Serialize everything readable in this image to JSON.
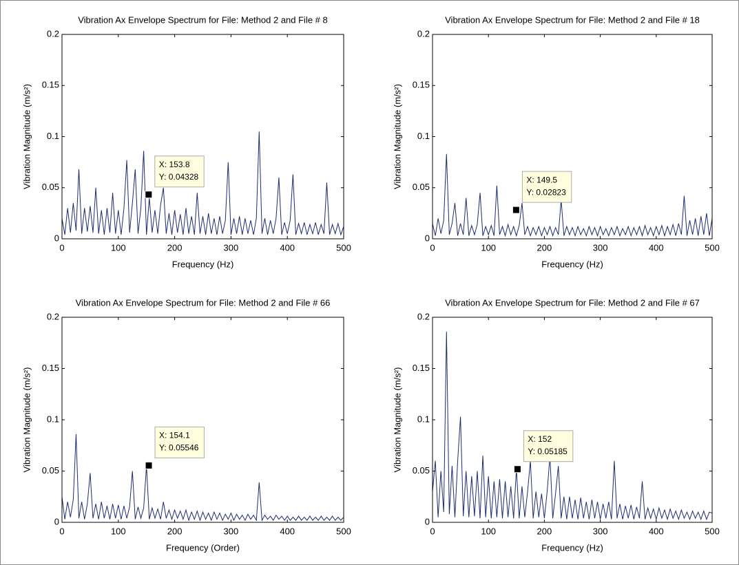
{
  "chart_data": [
    {
      "type": "line",
      "title": "Vibration Ax Envelope Spectrum for File: Method 2 and File # 8",
      "xlabel": "Frequency (Hz)",
      "ylabel": "Vibration Magnitude (m/s²)",
      "color": "#1c2a72",
      "x": [
        0,
        5,
        10,
        15,
        20,
        25,
        30,
        35,
        40,
        45,
        50,
        55,
        60,
        65,
        70,
        75,
        80,
        85,
        90,
        95,
        100,
        105,
        110,
        115,
        120,
        125,
        130,
        135,
        140,
        145,
        150,
        155,
        160,
        165,
        170,
        175,
        180,
        185,
        190,
        195,
        200,
        205,
        210,
        215,
        220,
        225,
        230,
        235,
        240,
        245,
        250,
        255,
        260,
        265,
        270,
        275,
        280,
        285,
        290,
        295,
        300,
        305,
        310,
        315,
        320,
        325,
        330,
        335,
        340,
        345,
        350,
        355,
        360,
        365,
        370,
        375,
        380,
        385,
        390,
        395,
        400,
        405,
        410,
        415,
        420,
        425,
        430,
        435,
        440,
        445,
        450,
        455,
        460,
        465,
        470,
        475,
        480,
        485,
        490,
        495,
        500
      ],
      "values": [
        0.02,
        0.004,
        0.03,
        0.006,
        0.035,
        0.008,
        0.068,
        0.005,
        0.03,
        0.007,
        0.032,
        0.006,
        0.05,
        0.005,
        0.028,
        0.004,
        0.03,
        0.006,
        0.045,
        0.005,
        0.028,
        0.004,
        0.03,
        0.077,
        0.006,
        0.035,
        0.068,
        0.005,
        0.03,
        0.086,
        0.004,
        0.04,
        0.006,
        0.028,
        0.005,
        0.033,
        0.05,
        0.005,
        0.025,
        0.004,
        0.028,
        0.006,
        0.024,
        0.004,
        0.03,
        0.005,
        0.022,
        0.004,
        0.045,
        0.005,
        0.022,
        0.004,
        0.025,
        0.005,
        0.02,
        0.004,
        0.022,
        0.005,
        0.018,
        0.075,
        0.004,
        0.02,
        0.005,
        0.022,
        0.004,
        0.02,
        0.005,
        0.018,
        0.004,
        0.02,
        0.105,
        0.005,
        0.02,
        0.004,
        0.018,
        0.005,
        0.02,
        0.06,
        0.004,
        0.016,
        0.005,
        0.018,
        0.063,
        0.004,
        0.015,
        0.005,
        0.016,
        0.004,
        0.014,
        0.005,
        0.016,
        0.004,
        0.014,
        0.005,
        0.055,
        0.004,
        0.014,
        0.005,
        0.015,
        0.004,
        0.012
      ],
      "xlim": [
        0,
        500
      ],
      "ylim": [
        0,
        0.2
      ],
      "xticks": [
        0,
        100,
        200,
        300,
        400,
        500
      ],
      "yticks": [
        0,
        0.05,
        0.1,
        0.15,
        0.2
      ],
      "datatip": {
        "x": 153.8,
        "y": 0.04328,
        "labels": [
          "X: 153.8",
          "Y: 0.04328"
        ]
      }
    },
    {
      "type": "line",
      "title": "Vibration Ax Envelope Spectrum for File: Method 2 and File # 18",
      "xlabel": "Frequency (Hz)",
      "ylabel": "Vibration Magnitude (m/s²)",
      "color": "#1c2a72",
      "x": [
        0,
        5,
        10,
        15,
        20,
        25,
        30,
        35,
        40,
        45,
        50,
        55,
        60,
        65,
        70,
        75,
        80,
        85,
        90,
        95,
        100,
        105,
        110,
        115,
        120,
        125,
        130,
        135,
        140,
        145,
        150,
        155,
        160,
        165,
        170,
        175,
        180,
        185,
        190,
        195,
        200,
        205,
        210,
        215,
        220,
        225,
        230,
        235,
        240,
        245,
        250,
        255,
        260,
        265,
        270,
        275,
        280,
        285,
        290,
        295,
        300,
        305,
        310,
        315,
        320,
        325,
        330,
        335,
        340,
        345,
        350,
        355,
        360,
        365,
        370,
        375,
        380,
        385,
        390,
        395,
        400,
        405,
        410,
        415,
        420,
        425,
        430,
        435,
        440,
        445,
        450,
        455,
        460,
        465,
        470,
        475,
        480,
        485,
        490,
        495,
        500
      ],
      "values": [
        0.015,
        0.003,
        0.02,
        0.005,
        0.018,
        0.083,
        0.004,
        0.015,
        0.035,
        0.003,
        0.015,
        0.004,
        0.04,
        0.003,
        0.013,
        0.004,
        0.014,
        0.045,
        0.003,
        0.012,
        0.004,
        0.013,
        0.003,
        0.052,
        0.004,
        0.012,
        0.003,
        0.014,
        0.004,
        0.012,
        0.003,
        0.013,
        0.035,
        0.004,
        0.012,
        0.003,
        0.011,
        0.004,
        0.012,
        0.003,
        0.011,
        0.004,
        0.012,
        0.003,
        0.011,
        0.004,
        0.038,
        0.003,
        0.012,
        0.004,
        0.011,
        0.003,
        0.012,
        0.004,
        0.01,
        0.003,
        0.012,
        0.004,
        0.011,
        0.003,
        0.012,
        0.004,
        0.01,
        0.003,
        0.011,
        0.004,
        0.012,
        0.003,
        0.01,
        0.004,
        0.012,
        0.003,
        0.011,
        0.004,
        0.012,
        0.003,
        0.013,
        0.004,
        0.011,
        0.003,
        0.012,
        0.004,
        0.013,
        0.003,
        0.012,
        0.004,
        0.014,
        0.003,
        0.015,
        0.004,
        0.042,
        0.003,
        0.018,
        0.004,
        0.02,
        0.003,
        0.022,
        0.004,
        0.025,
        0.003,
        0.02
      ],
      "xlim": [
        0,
        500
      ],
      "ylim": [
        0,
        0.2
      ],
      "xticks": [
        0,
        100,
        200,
        300,
        400,
        500
      ],
      "yticks": [
        0,
        0.05,
        0.1,
        0.15,
        0.2
      ],
      "datatip": {
        "x": 149.5,
        "y": 0.02823,
        "labels": [
          "X: 149.5",
          "Y: 0.02823"
        ]
      }
    },
    {
      "type": "line",
      "title": "Vibration Ax Envelope Spectrum for File: Method 2 and File # 66",
      "xlabel": "Frequency (Order)",
      "ylabel": "Vibration Magnitude (m/s²)",
      "color": "#1c2a72",
      "x": [
        0,
        5,
        10,
        15,
        20,
        25,
        30,
        35,
        40,
        45,
        50,
        55,
        60,
        65,
        70,
        75,
        80,
        85,
        90,
        95,
        100,
        105,
        110,
        115,
        120,
        125,
        130,
        135,
        140,
        145,
        150,
        155,
        160,
        165,
        170,
        175,
        180,
        185,
        190,
        195,
        200,
        205,
        210,
        215,
        220,
        225,
        230,
        235,
        240,
        245,
        250,
        255,
        260,
        265,
        270,
        275,
        280,
        285,
        290,
        295,
        300,
        305,
        310,
        315,
        320,
        325,
        330,
        335,
        340,
        345,
        350,
        355,
        360,
        365,
        370,
        375,
        380,
        385,
        390,
        395,
        400,
        405,
        410,
        415,
        420,
        425,
        430,
        435,
        440,
        445,
        450,
        455,
        460,
        465,
        470,
        475,
        480,
        485,
        490,
        495,
        500
      ],
      "values": [
        0.025,
        0.003,
        0.02,
        0.005,
        0.022,
        0.086,
        0.004,
        0.02,
        0.003,
        0.018,
        0.048,
        0.004,
        0.018,
        0.003,
        0.02,
        0.004,
        0.016,
        0.003,
        0.018,
        0.004,
        0.017,
        0.003,
        0.016,
        0.004,
        0.015,
        0.05,
        0.003,
        0.015,
        0.004,
        0.014,
        0.055,
        0.003,
        0.014,
        0.004,
        0.013,
        0.003,
        0.02,
        0.004,
        0.012,
        0.003,
        0.012,
        0.004,
        0.011,
        0.003,
        0.012,
        0.002,
        0.01,
        0.003,
        0.011,
        0.002,
        0.01,
        0.003,
        0.009,
        0.002,
        0.01,
        0.003,
        0.009,
        0.002,
        0.008,
        0.003,
        0.009,
        0.002,
        0.008,
        0.003,
        0.007,
        0.002,
        0.008,
        0.003,
        0.007,
        0.002,
        0.039,
        0.002,
        0.007,
        0.003,
        0.006,
        0.002,
        0.007,
        0.003,
        0.006,
        0.002,
        0.006,
        0.002,
        0.005,
        0.002,
        0.006,
        0.002,
        0.005,
        0.002,
        0.006,
        0.002,
        0.005,
        0.002,
        0.006,
        0.002,
        0.005,
        0.002,
        0.006,
        0.002,
        0.005,
        0.002,
        0.005
      ],
      "xlim": [
        0,
        500
      ],
      "ylim": [
        0,
        0.2
      ],
      "xticks": [
        0,
        100,
        200,
        300,
        400,
        500
      ],
      "yticks": [
        0,
        0.05,
        0.1,
        0.15,
        0.2
      ],
      "datatip": {
        "x": 154.1,
        "y": 0.05546,
        "labels": [
          "X: 154.1",
          "Y: 0.05546"
        ]
      }
    },
    {
      "type": "line",
      "title": "Vibration Ax Envelope Spectrum for File: Method 2 and File # 67",
      "xlabel": "Frequency (Hz)",
      "ylabel": "Vibration Magnitude (m/s²)",
      "color": "#1c2a72",
      "x": [
        0,
        5,
        10,
        15,
        20,
        25,
        30,
        35,
        40,
        45,
        50,
        55,
        60,
        65,
        70,
        75,
        80,
        85,
        90,
        95,
        100,
        105,
        110,
        115,
        120,
        125,
        130,
        135,
        140,
        145,
        150,
        155,
        160,
        165,
        170,
        175,
        180,
        185,
        190,
        195,
        200,
        205,
        210,
        215,
        220,
        225,
        230,
        235,
        240,
        245,
        250,
        255,
        260,
        265,
        270,
        275,
        280,
        285,
        290,
        295,
        300,
        305,
        310,
        315,
        320,
        325,
        330,
        335,
        340,
        345,
        350,
        355,
        360,
        365,
        370,
        375,
        380,
        385,
        390,
        395,
        400,
        405,
        410,
        415,
        420,
        425,
        430,
        435,
        440,
        445,
        450,
        455,
        460,
        465,
        470,
        475,
        480,
        485,
        490,
        495,
        500
      ],
      "values": [
        0.03,
        0.06,
        0.005,
        0.05,
        0.01,
        0.186,
        0.008,
        0.055,
        0.005,
        0.06,
        0.103,
        0.006,
        0.05,
        0.005,
        0.045,
        0.006,
        0.05,
        0.004,
        0.065,
        0.005,
        0.045,
        0.004,
        0.04,
        0.005,
        0.042,
        0.004,
        0.04,
        0.005,
        0.035,
        0.004,
        0.052,
        0.004,
        0.035,
        0.005,
        0.03,
        0.06,
        0.004,
        0.03,
        0.005,
        0.028,
        0.004,
        0.03,
        0.065,
        0.004,
        0.028,
        0.055,
        0.004,
        0.025,
        0.003,
        0.025,
        0.004,
        0.022,
        0.003,
        0.024,
        0.004,
        0.02,
        0.003,
        0.022,
        0.004,
        0.02,
        0.003,
        0.018,
        0.004,
        0.02,
        0.003,
        0.06,
        0.004,
        0.018,
        0.003,
        0.016,
        0.004,
        0.017,
        0.003,
        0.015,
        0.004,
        0.04,
        0.003,
        0.014,
        0.004,
        0.013,
        0.003,
        0.014,
        0.004,
        0.012,
        0.003,
        0.013,
        0.004,
        0.011,
        0.003,
        0.012,
        0.004,
        0.01,
        0.003,
        0.011,
        0.004,
        0.01,
        0.003,
        0.011,
        0.003,
        0.01,
        0.009
      ],
      "xlim": [
        0,
        500
      ],
      "ylim": [
        0,
        0.2
      ],
      "xticks": [
        0,
        100,
        200,
        300,
        400,
        500
      ],
      "yticks": [
        0,
        0.05,
        0.1,
        0.15,
        0.2
      ],
      "datatip": {
        "x": 152,
        "y": 0.05185,
        "labels": [
          "X: 152",
          "Y: 0.05185"
        ]
      }
    }
  ]
}
